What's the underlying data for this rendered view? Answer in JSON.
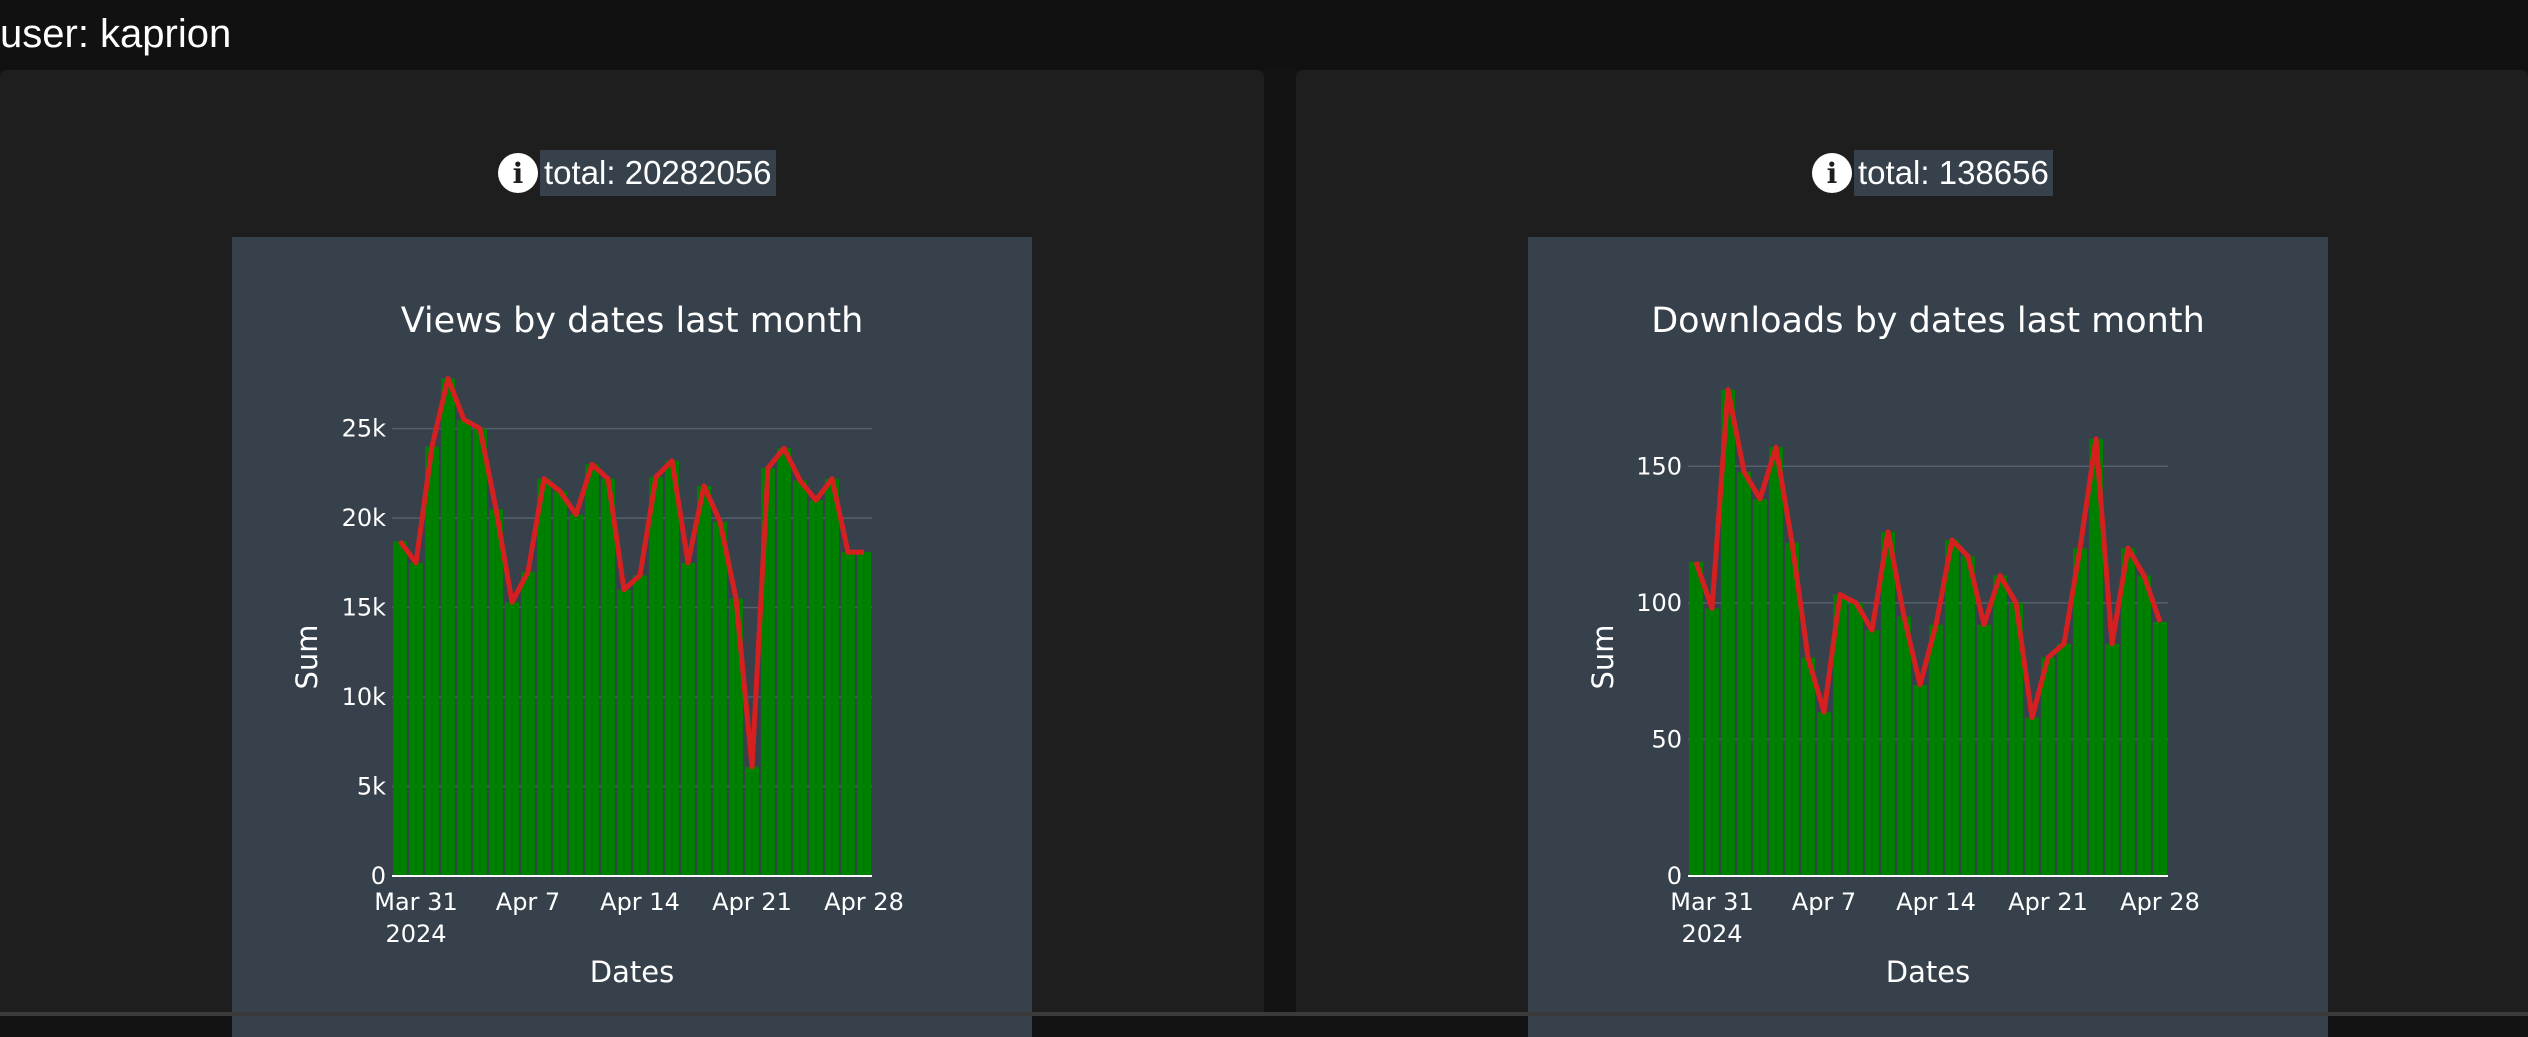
{
  "header": {
    "user_label": "user: kaprion"
  },
  "panels": [
    {
      "total_text": "total: 20282056",
      "info_icon": "info-icon"
    },
    {
      "total_text": "total: 138656",
      "info_icon": "info-icon"
    }
  ],
  "colors": {
    "bar": "#008000",
    "line": "#d62020",
    "chart_bg": "#37414c",
    "panel_bg": "#1e1e1e",
    "page_bg": "#131313"
  },
  "chart_data": [
    {
      "type": "bar",
      "title": "Views by dates last month",
      "xlabel": "Dates",
      "ylabel": "Sum",
      "x": [
        "2024-03-30",
        "2024-03-31",
        "2024-04-01",
        "2024-04-02",
        "2024-04-03",
        "2024-04-04",
        "2024-04-05",
        "2024-04-06",
        "2024-04-07",
        "2024-04-08",
        "2024-04-09",
        "2024-04-10",
        "2024-04-11",
        "2024-04-12",
        "2024-04-13",
        "2024-04-14",
        "2024-04-15",
        "2024-04-16",
        "2024-04-17",
        "2024-04-18",
        "2024-04-19",
        "2024-04-20",
        "2024-04-21",
        "2024-04-22",
        "2024-04-23",
        "2024-04-24",
        "2024-04-25",
        "2024-04-26",
        "2024-04-27",
        "2024-04-28"
      ],
      "values": [
        18700,
        17500,
        24000,
        27800,
        25500,
        25000,
        20500,
        15300,
        17000,
        22200,
        21500,
        20200,
        23000,
        22200,
        16000,
        16800,
        22300,
        23200,
        17500,
        21800,
        19800,
        15500,
        6100,
        22800,
        23900,
        22100,
        21000,
        22200,
        18100,
        18100
      ],
      "series_line": "same values",
      "ylim": [
        0,
        29000
      ],
      "yticks": [
        0,
        5000,
        10000,
        15000,
        20000,
        25000
      ],
      "ytick_labels": [
        "0",
        "5k",
        "10k",
        "15k",
        "20k",
        "25k"
      ],
      "xtick_dates": [
        "2024-03-31",
        "2024-04-07",
        "2024-04-14",
        "2024-04-21",
        "2024-04-28"
      ],
      "xtick_labels": [
        "Mar 31",
        "Apr 7",
        "Apr 14",
        "Apr 21",
        "Apr 28"
      ],
      "xtick_year": "2024",
      "grid": true
    },
    {
      "type": "bar",
      "title": "Downloads by dates last month",
      "xlabel": "Dates",
      "ylabel": "Sum",
      "x": [
        "2024-03-30",
        "2024-03-31",
        "2024-04-01",
        "2024-04-02",
        "2024-04-03",
        "2024-04-04",
        "2024-04-05",
        "2024-04-06",
        "2024-04-07",
        "2024-04-08",
        "2024-04-09",
        "2024-04-10",
        "2024-04-11",
        "2024-04-12",
        "2024-04-13",
        "2024-04-14",
        "2024-04-15",
        "2024-04-16",
        "2024-04-17",
        "2024-04-18",
        "2024-04-19",
        "2024-04-20",
        "2024-04-21",
        "2024-04-22",
        "2024-04-23",
        "2024-04-24",
        "2024-04-25",
        "2024-04-26",
        "2024-04-27",
        "2024-04-28"
      ],
      "values": [
        115,
        98,
        178,
        148,
        138,
        157,
        122,
        80,
        60,
        103,
        100,
        90,
        126,
        95,
        70,
        92,
        123,
        117,
        92,
        110,
        100,
        58,
        80,
        85,
        120,
        160,
        85,
        120,
        110,
        93
      ],
      "series_line": "same values",
      "ylim": [
        0,
        190
      ],
      "yticks": [
        0,
        50,
        100,
        150
      ],
      "ytick_labels": [
        "0",
        "50",
        "100",
        "150"
      ],
      "xtick_dates": [
        "2024-03-31",
        "2024-04-07",
        "2024-04-14",
        "2024-04-21",
        "2024-04-28"
      ],
      "xtick_labels": [
        "Mar 31",
        "Apr 7",
        "Apr 14",
        "Apr 21",
        "Apr 28"
      ],
      "xtick_year": "2024",
      "grid": true
    }
  ]
}
